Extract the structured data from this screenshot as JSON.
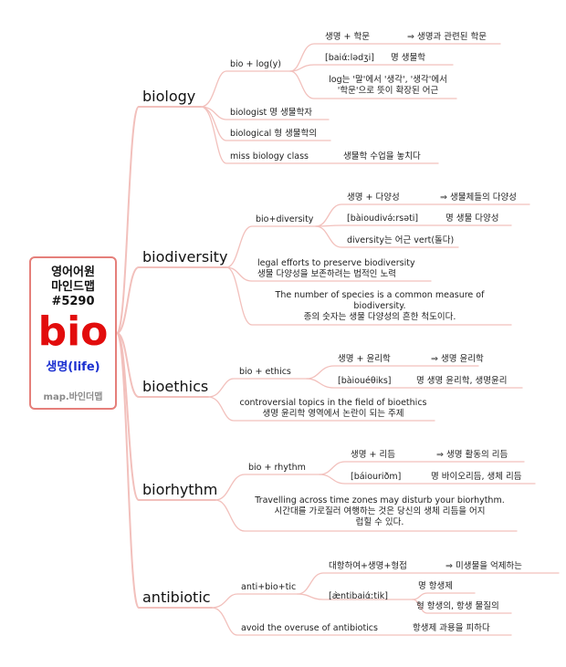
{
  "center": {
    "line1": "영어어원",
    "line2": "마인드맵",
    "line3": "#5290",
    "word": "bio",
    "meaning": "생명(life)",
    "site": "map.바인더맵"
  },
  "branches": [
    {
      "title": "biology",
      "nodes": [
        {
          "text": "bio  +  log(y)"
        },
        {
          "text": "생명 + 학문"
        },
        {
          "text": "⇒ 생명과 관련된 학문"
        },
        {
          "text": "[baiάːlədʒi]"
        },
        {
          "text": "명 생물학"
        },
        {
          "text": "log는 '말'에서 '생각', '생각'에서\n'학문'으로 뜻이 확장된 어근"
        },
        {
          "text": "biologist 명 생물학자"
        },
        {
          "text": "biological 형 생물학의"
        },
        {
          "text": "miss biology class"
        },
        {
          "text": "생물학 수업을 놓치다"
        }
      ]
    },
    {
      "title": "biodiversity",
      "nodes": [
        {
          "text": "bio+diversity"
        },
        {
          "text": "생명 + 다양성"
        },
        {
          "text": "⇒ 생물체들의 다양성"
        },
        {
          "text": "[bàioudivə́ːrsəti]"
        },
        {
          "text": "명 생물 다양성"
        },
        {
          "text": "diversity는 어근 vert(돌다)"
        },
        {
          "text": "legal efforts to preserve biodiversity\n생물 다양성을 보존하려는 법적인 노력"
        },
        {
          "text": "The number of species is a common measure of\nbiodiversity.\n종의 숫자는 생물 다양성의 흔한 척도이다."
        }
      ]
    },
    {
      "title": "bioethics",
      "nodes": [
        {
          "text": "bio  +  ethics"
        },
        {
          "text": "생명 + 윤리학"
        },
        {
          "text": "⇒ 생명 윤리학"
        },
        {
          "text": "[bàiouéθiks]"
        },
        {
          "text": "명 생명 윤리학, 생명윤리"
        },
        {
          "text": "controversial topics in the field of bioethics\n생명 윤리학 영역에서 논란이 되는 주제"
        }
      ]
    },
    {
      "title": "biorhythm",
      "nodes": [
        {
          "text": "bio  +  rhythm"
        },
        {
          "text": "생명 + 리듬"
        },
        {
          "text": "⇒ 생명 활동의 리듬"
        },
        {
          "text": "[báiouriðm]"
        },
        {
          "text": "명 바이오리듬, 생체 리듬"
        },
        {
          "text": "Travelling across time zones may disturb your biorhythm.\n시간대를 가로질러 여행하는 것은 당신의 생체 리듬을 어지\n럽힐 수 있다."
        }
      ]
    },
    {
      "title": "antibiotic",
      "nodes": [
        {
          "text": "anti+bio+tic"
        },
        {
          "text": "대항하여+생명+형접"
        },
        {
          "text": "⇒ 미생물을 억제하는"
        },
        {
          "text": "[æ̀ntibaiάːtik]"
        },
        {
          "text": "명 항생제"
        },
        {
          "text": "형 항생의, 항생 물질의"
        },
        {
          "text": "avoid the overuse of antibiotics"
        },
        {
          "text": "항생제 과용을 피하다"
        }
      ]
    }
  ],
  "colors": {
    "line": "#f2c0bc",
    "card_border": "#e57f7a",
    "word": "#e20c0c",
    "meaning": "#1a2fd0",
    "site": "#8a8a8a"
  }
}
